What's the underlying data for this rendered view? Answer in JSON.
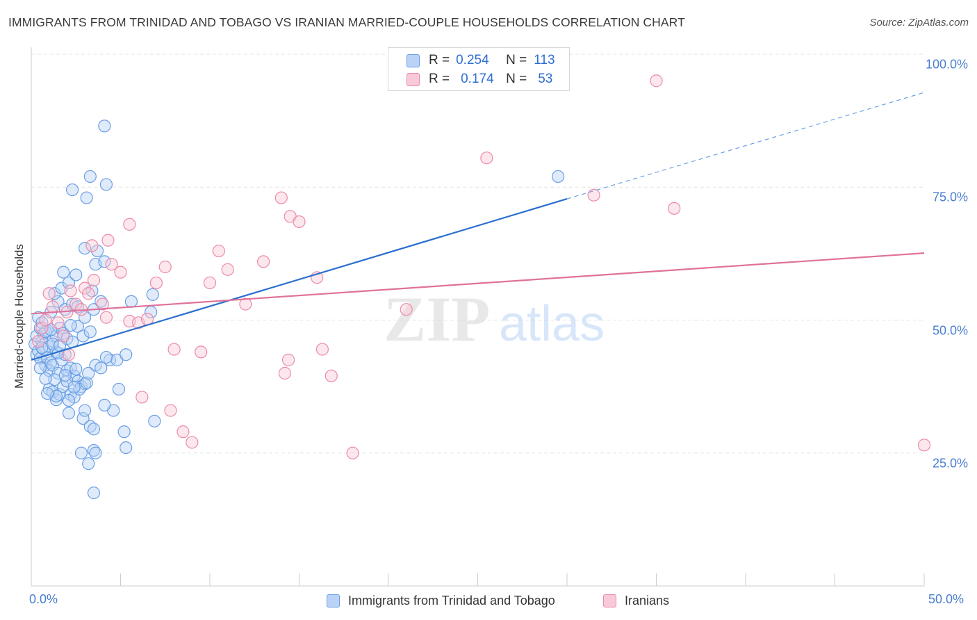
{
  "title": "IMMIGRANTS FROM TRINIDAD AND TOBAGO VS IRANIAN MARRIED-COUPLE HOUSEHOLDS CORRELATION CHART",
  "source": "Source: ZipAtlas.com",
  "watermark": {
    "zip": "ZIP",
    "atlas": "atlas"
  },
  "colors": {
    "blue": "#6a9ee6",
    "blue_fill": "#b9d2f5",
    "blue_line": "#2a6fcf",
    "pink": "#ec8aa9",
    "pink_fill": "#f8c9d8",
    "pink_line": "#e0719a",
    "axis_text": "#4a7fd0"
  },
  "legend": {
    "rows": [
      {
        "r_label": "R =",
        "r_value": "0.254",
        "n_label": "N =",
        "n_value": "113"
      },
      {
        "r_label": "R =",
        "r_value": "0.174",
        "n_label": "N =",
        "n_value": "53"
      }
    ]
  },
  "bottom_legend": [
    "Immigrants from Trinidad and Tobago",
    "Iranians"
  ],
  "chart_data": {
    "type": "scatter",
    "title": "IMMIGRANTS FROM TRINIDAD AND TOBAGO VS IRANIAN MARRIED-COUPLE HOUSEHOLDS CORRELATION CHART",
    "xlabel": "",
    "ylabel": "Married-couple Households",
    "xlim": [
      0,
      50
    ],
    "ylim": [
      0,
      100
    ],
    "x_tick_labels": [
      "0.0%",
      "50.0%"
    ],
    "y_ticks": [
      25,
      50,
      75,
      100
    ],
    "y_tick_labels": [
      "25.0%",
      "50.0%",
      "75.0%",
      "100.0%"
    ],
    "grid": true,
    "legend_position": "top-center",
    "series": [
      {
        "name": "Immigrants from Trinidad and Tobago",
        "color": "#6a9ee6",
        "r": 0.254,
        "n": 113,
        "trend": {
          "x": [
            0,
            30
          ],
          "y": [
            42.5,
            72.8
          ],
          "dashed_to_x": 50,
          "dashed_to_y": 92.8
        },
        "points": [
          [
            0.2,
            45.5
          ],
          [
            0.3,
            43.5
          ],
          [
            0.4,
            44.2
          ],
          [
            0.5,
            42.8
          ],
          [
            0.6,
            46.0
          ],
          [
            0.7,
            44.5
          ],
          [
            0.8,
            41.5
          ],
          [
            0.9,
            43.0
          ],
          [
            1.0,
            45.0
          ],
          [
            1.1,
            42.0
          ],
          [
            0.3,
            47.0
          ],
          [
            0.5,
            48.5
          ],
          [
            0.7,
            47.5
          ],
          [
            0.9,
            48.0
          ],
          [
            1.2,
            46.0
          ],
          [
            1.4,
            47.0
          ],
          [
            1.6,
            48.5
          ],
          [
            1.8,
            47.5
          ],
          [
            2.0,
            46.5
          ],
          [
            2.6,
            48.8
          ],
          [
            1.0,
            40.5
          ],
          [
            1.2,
            41.5
          ],
          [
            1.5,
            40.0
          ],
          [
            1.7,
            42.5
          ],
          [
            2.0,
            40.5
          ],
          [
            2.2,
            41.0
          ],
          [
            2.4,
            39.5
          ],
          [
            2.6,
            38.5
          ],
          [
            2.8,
            37.5
          ],
          [
            3.0,
            38.0
          ],
          [
            1.0,
            37.0
          ],
          [
            1.2,
            36.5
          ],
          [
            1.4,
            35.0
          ],
          [
            1.6,
            36.0
          ],
          [
            1.8,
            37.5
          ],
          [
            2.0,
            38.5
          ],
          [
            2.2,
            36.0
          ],
          [
            2.4,
            35.5
          ],
          [
            2.7,
            37.0
          ],
          [
            3.1,
            38.2
          ],
          [
            1.1,
            51.5
          ],
          [
            1.5,
            53.5
          ],
          [
            1.9,
            52.0
          ],
          [
            2.3,
            53.0
          ],
          [
            2.6,
            52.5
          ],
          [
            3.0,
            50.5
          ],
          [
            3.5,
            52.0
          ],
          [
            1.3,
            55.0
          ],
          [
            1.7,
            56.0
          ],
          [
            2.1,
            57.0
          ],
          [
            2.5,
            58.5
          ],
          [
            1.8,
            59.0
          ],
          [
            3.4,
            55.5
          ],
          [
            3.9,
            53.5
          ],
          [
            5.6,
            53.5
          ],
          [
            6.8,
            54.8
          ],
          [
            6.7,
            51.5
          ],
          [
            2.2,
            49.0
          ],
          [
            2.9,
            47.0
          ],
          [
            3.3,
            47.8
          ],
          [
            4.4,
            42.5
          ],
          [
            4.8,
            42.5
          ],
          [
            5.3,
            43.5
          ],
          [
            4.2,
            43.0
          ],
          [
            3.6,
            41.5
          ],
          [
            3.9,
            41.0
          ],
          [
            3.2,
            40.0
          ],
          [
            1.4,
            44.0
          ],
          [
            1.9,
            43.5
          ],
          [
            0.6,
            44.8
          ],
          [
            2.9,
            31.5
          ],
          [
            3.3,
            30.0
          ],
          [
            3.5,
            29.5
          ],
          [
            4.6,
            33.0
          ],
          [
            4.9,
            37.0
          ],
          [
            4.1,
            34.0
          ],
          [
            3.0,
            33.0
          ],
          [
            2.1,
            32.5
          ],
          [
            5.2,
            29.0
          ],
          [
            6.9,
            31.0
          ],
          [
            2.8,
            25.0
          ],
          [
            3.5,
            25.5
          ],
          [
            3.6,
            25.0
          ],
          [
            5.3,
            26.0
          ],
          [
            3.2,
            23.0
          ],
          [
            3.5,
            17.5
          ],
          [
            4.1,
            86.5
          ],
          [
            3.3,
            77.0
          ],
          [
            2.3,
            74.5
          ],
          [
            3.1,
            73.0
          ],
          [
            4.2,
            75.5
          ],
          [
            3.0,
            63.5
          ],
          [
            3.7,
            63.0
          ],
          [
            3.6,
            60.5
          ],
          [
            4.1,
            61.0
          ],
          [
            29.5,
            77.0
          ],
          [
            0.4,
            50.5
          ],
          [
            0.6,
            49.5
          ],
          [
            0.8,
            47.8
          ],
          [
            1.2,
            45.5
          ],
          [
            1.5,
            43.8
          ],
          [
            1.3,
            38.8
          ],
          [
            1.9,
            39.6
          ],
          [
            2.4,
            37.4
          ],
          [
            0.8,
            39.0
          ],
          [
            1.4,
            35.7
          ],
          [
            2.1,
            34.9
          ],
          [
            2.5,
            40.8
          ],
          [
            0.5,
            41.0
          ],
          [
            0.9,
            36.2
          ],
          [
            1.6,
            45.2
          ],
          [
            1.1,
            48.2
          ],
          [
            2.3,
            45.9
          ]
        ]
      },
      {
        "name": "Iranians",
        "color": "#ec8aa9",
        "r": 0.174,
        "n": 53,
        "trend": {
          "x": [
            0,
            50
          ],
          "y": [
            51.2,
            62.6
          ]
        },
        "points": [
          [
            0.4,
            46.0
          ],
          [
            0.6,
            48.5
          ],
          [
            0.8,
            50.0
          ],
          [
            1.0,
            55.0
          ],
          [
            1.2,
            52.5
          ],
          [
            1.5,
            49.5
          ],
          [
            1.8,
            47.0
          ],
          [
            2.0,
            51.5
          ],
          [
            2.2,
            55.5
          ],
          [
            2.5,
            53.0
          ],
          [
            2.8,
            52.0
          ],
          [
            3.0,
            56.0
          ],
          [
            3.2,
            55.0
          ],
          [
            3.5,
            57.5
          ],
          [
            4.0,
            53.0
          ],
          [
            4.2,
            50.5
          ],
          [
            4.5,
            60.5
          ],
          [
            5.0,
            59.0
          ],
          [
            5.5,
            49.8
          ],
          [
            6.0,
            49.5
          ],
          [
            6.5,
            50.2
          ],
          [
            7.0,
            57.0
          ],
          [
            7.5,
            60.0
          ],
          [
            8.0,
            44.5
          ],
          [
            9.5,
            44.0
          ],
          [
            10.0,
            57.0
          ],
          [
            10.5,
            63.0
          ],
          [
            11.0,
            59.5
          ],
          [
            12.0,
            53.0
          ],
          [
            13.0,
            61.0
          ],
          [
            14.0,
            73.0
          ],
          [
            14.5,
            69.5
          ],
          [
            15.0,
            68.5
          ],
          [
            14.2,
            40.0
          ],
          [
            14.4,
            42.5
          ],
          [
            16.0,
            58.0
          ],
          [
            16.3,
            44.5
          ],
          [
            16.8,
            39.5
          ],
          [
            18.0,
            25.0
          ],
          [
            21.0,
            52.0
          ],
          [
            25.5,
            80.5
          ],
          [
            31.5,
            73.5
          ],
          [
            35.0,
            95.0
          ],
          [
            36.0,
            71.0
          ],
          [
            50.0,
            26.5
          ],
          [
            6.2,
            35.5
          ],
          [
            7.8,
            33.0
          ],
          [
            8.5,
            29.0
          ],
          [
            9.0,
            27.0
          ],
          [
            4.3,
            65.0
          ],
          [
            5.5,
            68.0
          ],
          [
            3.4,
            64.0
          ],
          [
            2.1,
            43.5
          ]
        ]
      }
    ]
  }
}
